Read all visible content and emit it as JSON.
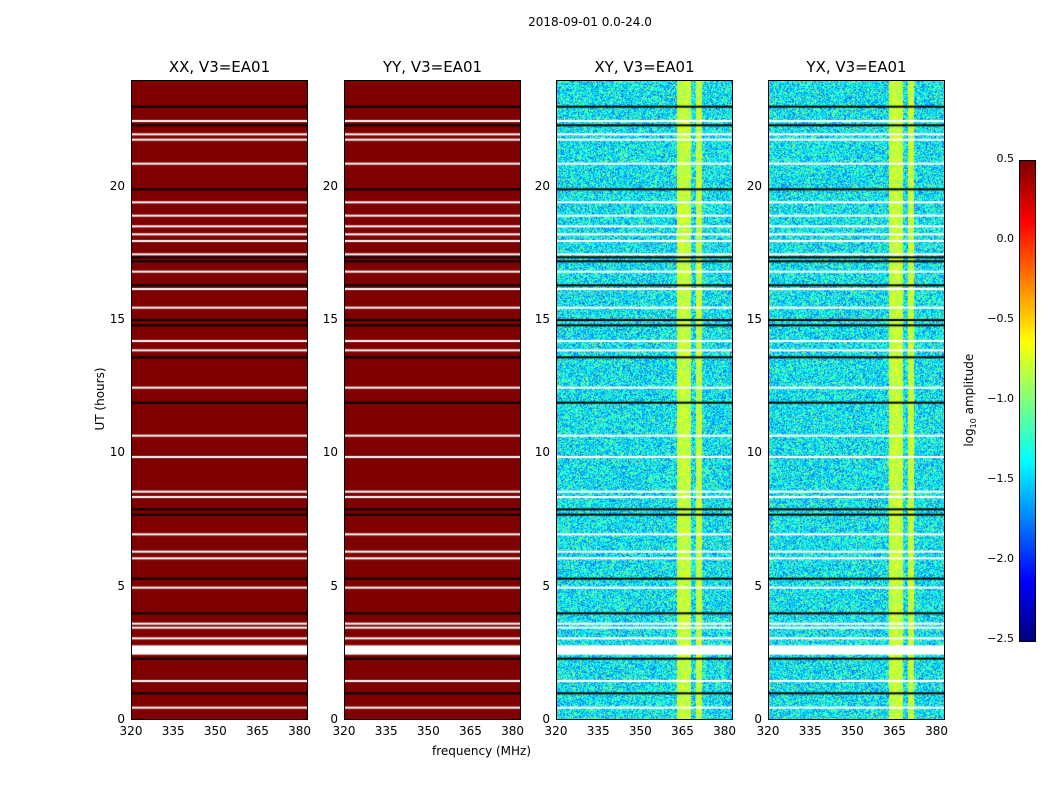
{
  "suptitle": "2018-09-01 0.0-24.0",
  "chart_data": {
    "type": "heatmap",
    "title": "2018-09-01 0.0-24.0",
    "panels": [
      {
        "title": "XX, V3=EA01",
        "kind": "auto"
      },
      {
        "title": "YY, V3=EA01",
        "kind": "auto"
      },
      {
        "title": "XY, V3=EA01",
        "kind": "cross"
      },
      {
        "title": "YX, V3=EA01",
        "kind": "cross"
      }
    ],
    "xlabel": "frequency (MHz)",
    "ylabel": "UT (hours)",
    "xlim": [
      320,
      383
    ],
    "ylim": [
      0,
      24
    ],
    "xticks": [
      "320",
      "335",
      "350",
      "365",
      "380"
    ],
    "xtick_values": [
      320,
      335,
      350,
      365,
      380
    ],
    "yticks": [
      "0",
      "5",
      "10",
      "15",
      "20"
    ],
    "ytick_values": [
      0,
      5,
      10,
      15,
      20
    ],
    "colorbar": {
      "label": "log10 amplitude",
      "label_main": "log",
      "label_sub": "10",
      "label_rest": " amplitude",
      "range": [
        -2.5,
        0.5
      ],
      "ticks": [
        "0.5",
        "0.0",
        "−0.5",
        "−1.0",
        "−1.5",
        "−2.0",
        "−2.5"
      ],
      "tick_values": [
        0.5,
        0,
        -0.5,
        -1,
        -1.5,
        -2,
        -2.5
      ],
      "colormap": "jet"
    },
    "auto_value": 0.5,
    "cross_background_value": -1.4,
    "cross_band_mhz": [
      [
        363,
        368
      ],
      [
        370,
        372
      ]
    ],
    "cross_band_value": -0.8,
    "flagged_white_hours": [
      [
        0.45,
        0.5
      ],
      [
        1.45,
        1.5
      ],
      [
        2.45,
        2.8
      ],
      [
        3.05,
        3.1
      ],
      [
        3.45,
        3.5
      ],
      [
        3.6,
        3.65
      ],
      [
        4.95,
        5.0
      ],
      [
        6.05,
        6.1
      ],
      [
        6.3,
        6.35
      ],
      [
        6.95,
        7.0
      ],
      [
        8.35,
        8.4
      ],
      [
        8.55,
        8.6
      ],
      [
        9.85,
        9.9
      ],
      [
        10.65,
        10.7
      ],
      [
        12.45,
        12.5
      ],
      [
        13.85,
        13.9
      ],
      [
        14.2,
        14.25
      ],
      [
        15.45,
        15.5
      ],
      [
        16.15,
        16.2
      ],
      [
        16.8,
        16.85
      ],
      [
        17.45,
        17.5
      ],
      [
        17.95,
        18.0
      ],
      [
        18.2,
        18.25
      ],
      [
        18.5,
        18.55
      ],
      [
        18.9,
        18.95
      ],
      [
        19.4,
        19.45
      ],
      [
        20.85,
        20.9
      ],
      [
        21.75,
        21.8
      ],
      [
        21.95,
        22.0
      ],
      [
        22.45,
        22.5
      ]
    ],
    "flagged_black_hours": [
      1.0,
      2.3,
      4.0,
      5.3,
      7.7,
      7.9,
      11.9,
      13.6,
      14.8,
      15.0,
      16.3,
      17.2,
      17.35,
      19.9,
      22.3,
      23.0
    ]
  }
}
